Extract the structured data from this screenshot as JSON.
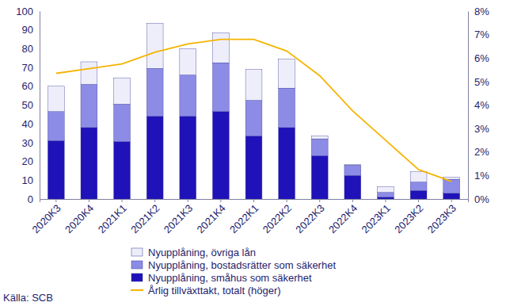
{
  "chart_data": {
    "type": "bar",
    "stacked": true,
    "source": "Källa: SCB",
    "categories": [
      "2020K3",
      "2020K4",
      "2021K1",
      "2021K2",
      "2021K3",
      "2021K4",
      "2022K1",
      "2022K2",
      "2022K3",
      "2022K4",
      "2023K1",
      "2023K2",
      "2023K3"
    ],
    "series": [
      {
        "name": "Nyupplåning, småhus som säkerhet",
        "color": "#1f12b8",
        "values": [
          31,
          38,
          30.5,
          44,
          44,
          46.5,
          33.5,
          38,
          23,
          12.5,
          1,
          4.5,
          3
        ]
      },
      {
        "name": "Nyupplåning, bostadsrätter som säkerhet",
        "color": "#8c8ce6",
        "values": [
          15.5,
          23,
          20,
          25.5,
          22,
          26,
          19,
          21,
          9,
          5.5,
          2.5,
          4.5,
          7.5
        ]
      },
      {
        "name": "Nyupplåning, övriga lån",
        "color": "#eeeefb",
        "values": [
          13.5,
          12,
          14,
          24,
          14,
          16,
          16.5,
          15.5,
          1.5,
          0.3,
          3,
          5.5,
          1
        ]
      },
      {
        "name": "Årlig tillväxttakt, totalt (höger)",
        "color": "#f5b400",
        "type": "line",
        "axis": "y2",
        "values": [
          5.35,
          5.55,
          5.75,
          6.25,
          6.6,
          6.8,
          6.8,
          6.3,
          5.25,
          3.75,
          2.5,
          1.25,
          0.75
        ]
      }
    ],
    "ylim": [
      0,
      100
    ],
    "yticks": [
      0,
      10,
      20,
      30,
      40,
      50,
      60,
      70,
      80,
      90,
      100
    ],
    "y2lim": [
      0,
      8
    ],
    "y2ticks": [
      {
        "value": 0,
        "label": "0%"
      },
      {
        "value": 1,
        "label": "1%"
      },
      {
        "value": 2,
        "label": "2%"
      },
      {
        "value": 3,
        "label": "3%"
      },
      {
        "value": 4,
        "label": "4%"
      },
      {
        "value": 5,
        "label": "5%"
      },
      {
        "value": 6,
        "label": "6%"
      },
      {
        "value": 7,
        "label": "7%"
      },
      {
        "value": 8,
        "label": "8%"
      }
    ],
    "grid": false,
    "legend": "bottom"
  }
}
